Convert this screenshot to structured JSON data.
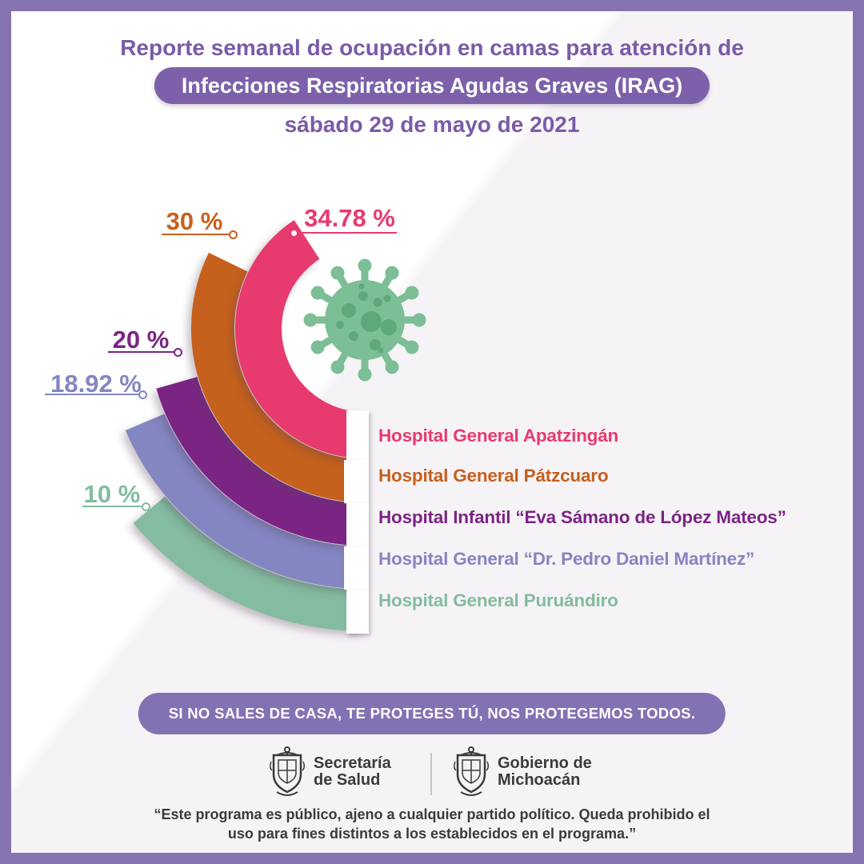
{
  "theme": {
    "frame": "#8773AF",
    "header_purple": "#7A5BA8",
    "badge_bg": "#7C61AA",
    "banner_bg": "#8272B4",
    "dark": "#3B3B3B",
    "divider": "#C9C4CE",
    "card_light": "#FFFFFF",
    "card_shade": "#F6F3F6"
  },
  "header": {
    "title": "Reporte semanal de ocupación en camas para atención de",
    "badge": "Infecciones Respiratorias Agudas Graves (IRAG)",
    "date": "sábado 29 de mayo de 2021"
  },
  "chart_data": {
    "type": "radial-bar",
    "unit": "%",
    "max": 100,
    "icon": "coronavirus-icon",
    "icon_color": "#7CBE95",
    "icon_spot_color": "#5FA87C",
    "series": [
      {
        "label": "Hospital General Apatzingán",
        "value": 34.78,
        "display": "34.78 %",
        "color": "#E73A6E"
      },
      {
        "label": "Hospital General Pátzcuaro",
        "value": 30,
        "display": "30 %",
        "color": "#C6601D"
      },
      {
        "label": "Hospital Infantil “Eva Sámano de López Mateos”",
        "value": 20,
        "display": "20 %",
        "color": "#7B2484"
      },
      {
        "label": "Hospital General “Dr. Pedro Daniel Martínez”",
        "value": 18.92,
        "display": "18.92 %",
        "color": "#8486C2"
      },
      {
        "label": "Hospital General Puruándiro",
        "value": 10,
        "display": "10 %",
        "color": "#83BCA0"
      }
    ]
  },
  "banner": {
    "text": "SI NO SALES DE CASA, TE PROTEGES TÚ, NOS PROTEGEMOS TODOS."
  },
  "logos": {
    "salud": {
      "line1": "Secretaría",
      "line2": "de Salud"
    },
    "michoacan": {
      "line1": "Gobierno de",
      "line2": "Michoacán"
    }
  },
  "footer": {
    "line1": "“Este programa es público, ajeno a cualquier partido político. Queda prohibido el",
    "line2": "uso para fines distintos a los establecidos en el programa.”"
  }
}
